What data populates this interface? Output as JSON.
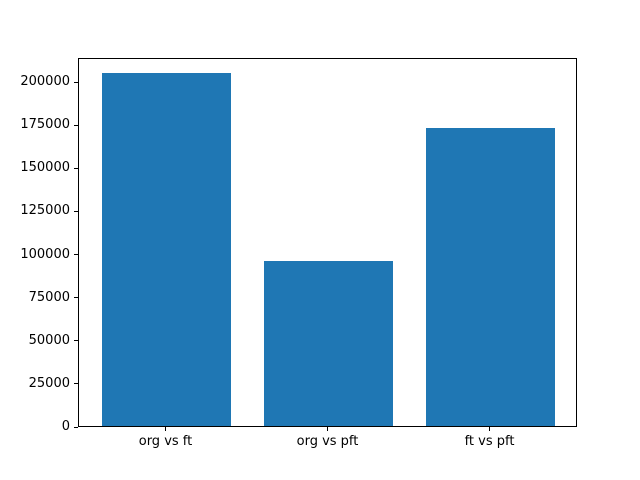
{
  "chart_data": {
    "type": "bar",
    "title": "",
    "xlabel": "",
    "ylabel": "",
    "categories": [
      "org vs ft",
      "org vs pft",
      "ft vs pft"
    ],
    "values": [
      204500,
      95500,
      173000
    ],
    "yticks": [
      0,
      25000,
      50000,
      75000,
      100000,
      125000,
      150000,
      175000,
      200000
    ],
    "ylim": [
      0,
      214000
    ],
    "bar_color": "#1f77b4",
    "axis_color": "#000000",
    "background_color": "#ffffff",
    "grid": "off",
    "legend": "none"
  }
}
